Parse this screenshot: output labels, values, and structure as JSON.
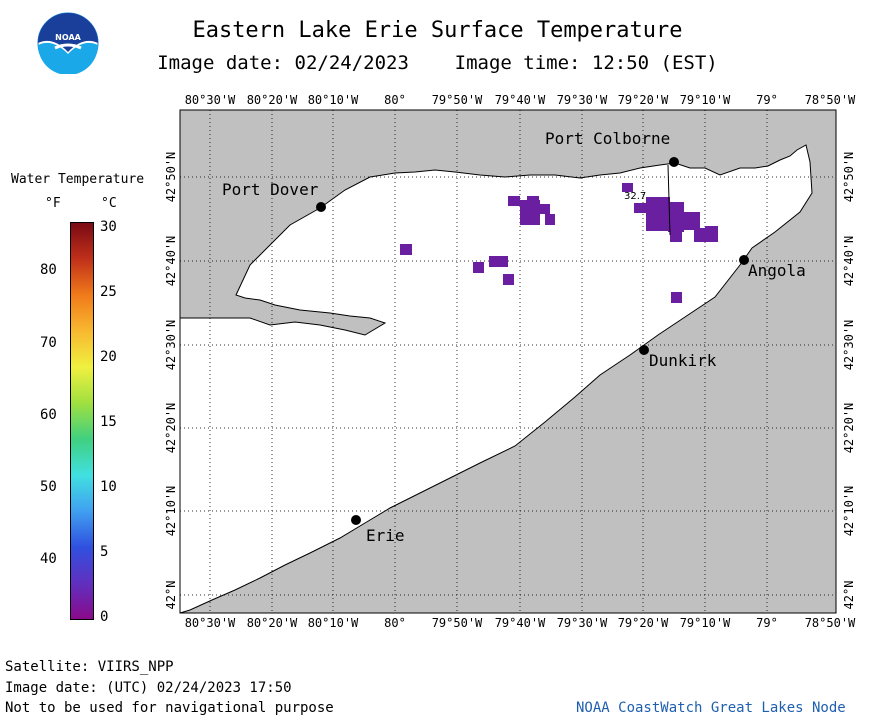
{
  "header": {
    "agency_logo_text": "NOAA",
    "title": "Eastern Lake Erie Surface Temperature",
    "date_line": "Image date: 02/24/2023    Image time: 12:50 (EST)"
  },
  "map": {
    "lon_labels": [
      "80°30'W",
      "80°20'W",
      "80°10'W",
      "80°",
      "79°50'W",
      "79°40'W",
      "79°30'W",
      "79°20'W",
      "79°10'W",
      "79°",
      "78°50'W"
    ],
    "lat_labels": [
      "42°50'N",
      "42°40'N",
      "42°30'N",
      "42°20'N",
      "42°10'N",
      "42°N"
    ],
    "cities": [
      {
        "name": "Port Colborne"
      },
      {
        "name": "Port Dover"
      },
      {
        "name": "Angola"
      },
      {
        "name": "Dunkirk"
      },
      {
        "name": "Erie"
      }
    ],
    "point_value": "32.7",
    "colors": {
      "land": "#c0c0c0",
      "water": "#ffffff",
      "ice_cold": "#6a1fa0"
    }
  },
  "legend": {
    "title": "Water Temperature",
    "unit_f": "°F",
    "unit_c": "°C",
    "celsius_ticks": [
      "30",
      "25",
      "20",
      "15",
      "10",
      "5",
      "0"
    ],
    "fahrenheit_ticks": [
      "80",
      "70",
      "60",
      "50",
      "40"
    ],
    "range_c": [
      0,
      30
    ],
    "gradient_colors": [
      "#7a0a14",
      "#c0301a",
      "#f07a1a",
      "#f8b830",
      "#f0f040",
      "#a0e040",
      "#40d080",
      "#40e0e0",
      "#40a0f0",
      "#3050e0",
      "#6030c0",
      "#8a0a8a"
    ]
  },
  "footer": {
    "satellite": "Satellite: VIIRS_NPP",
    "utc_date": "Image date: (UTC) 02/24/2023  17:50",
    "disclaimer": "Not to be used for navigational purpose",
    "credit": "NOAA CoastWatch Great Lakes Node"
  }
}
